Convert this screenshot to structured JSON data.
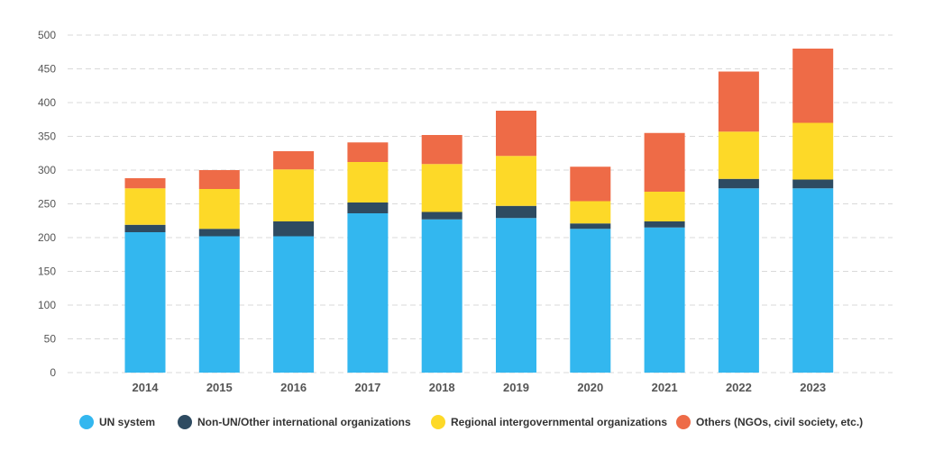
{
  "chart_data": {
    "type": "bar",
    "stacked": true,
    "title": "",
    "xlabel": "",
    "ylabel": "",
    "ylim": [
      0,
      500
    ],
    "yticks": [
      0,
      50,
      100,
      150,
      200,
      250,
      300,
      350,
      400,
      450,
      500
    ],
    "grid": true,
    "legend_position": "bottom",
    "categories": [
      "2014",
      "2015",
      "2016",
      "2017",
      "2018",
      "2019",
      "2020",
      "2021",
      "2022",
      "2023"
    ],
    "series": [
      {
        "name": "UN system",
        "color": "#33b7ef",
        "values": [
          208,
          202,
          202,
          236,
          227,
          229,
          213,
          215,
          273,
          273
        ]
      },
      {
        "name": "Non-UN/Other international organizations",
        "color": "#2e4b61",
        "values": [
          11,
          11,
          22,
          16,
          11,
          18,
          8,
          9,
          14,
          13
        ]
      },
      {
        "name": "Regional intergovernmental organizations",
        "color": "#fdd928",
        "values": [
          54,
          59,
          77,
          60,
          71,
          74,
          33,
          44,
          70,
          84
        ]
      },
      {
        "name": "Others (NGOs, civil society, etc.)",
        "color": "#ee6b47",
        "values": [
          15,
          28,
          27,
          29,
          43,
          67,
          51,
          87,
          89,
          110
        ]
      }
    ]
  }
}
